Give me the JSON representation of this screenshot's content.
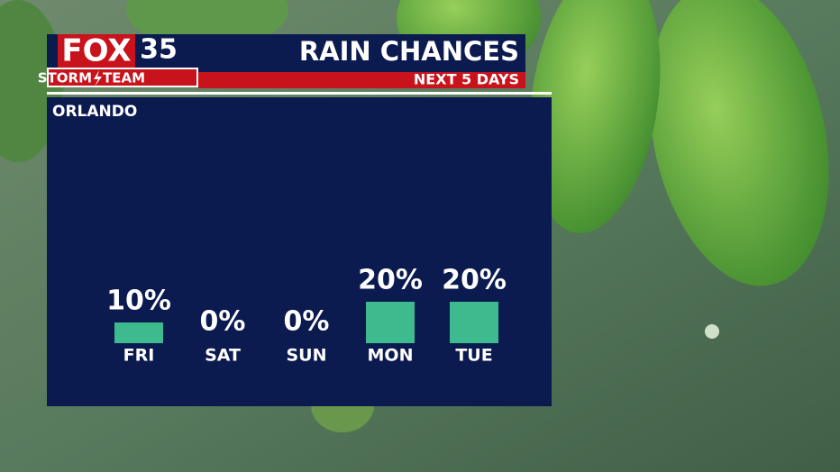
{
  "brand": {
    "name": "FOX",
    "channel": "35",
    "team_first": "STORM",
    "team_second": "TEAM"
  },
  "chart_data": {
    "type": "bar",
    "title": "RAIN CHANCES",
    "subtitle": "NEXT 5 DAYS",
    "location": "ORLANDO",
    "categories": [
      "FRI",
      "SAT",
      "SUN",
      "MON",
      "TUE"
    ],
    "values": [
      10,
      0,
      0,
      20,
      20
    ],
    "value_labels": [
      "10%",
      "0%",
      "0%",
      "20%",
      "20%"
    ],
    "color": "#3dbb8f"
  }
}
